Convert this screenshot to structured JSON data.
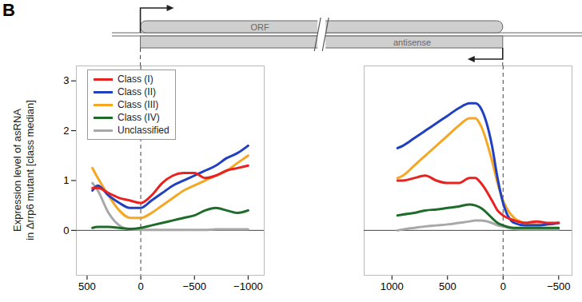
{
  "panel_label": "B",
  "schematic": {
    "orf": "ORF",
    "antisense": "antisense"
  },
  "chart_data": [
    {
      "type": "line",
      "ylabel": [
        "Expression level of asRNA",
        "in Δrrp6 mutant [class median]"
      ],
      "legend": "upper left",
      "x": [
        450,
        400,
        300,
        200,
        100,
        0,
        -100,
        -200,
        -300,
        -400,
        -500,
        -600,
        -700,
        -800,
        -900,
        -1000
      ],
      "xlim": [
        600,
        -1150
      ],
      "xticks": [
        500,
        0,
        -500,
        -1000
      ],
      "ylim": [
        -0.9,
        3.3
      ],
      "yticks": [
        0,
        1,
        2,
        3
      ],
      "reference_lines": [
        {
          "axis": "y",
          "value": 0,
          "line_style": "solid"
        },
        {
          "axis": "x",
          "value": 0,
          "line_style": "dashed"
        }
      ],
      "series": [
        {
          "name": "Class (I)",
          "color": "#e8231f",
          "values": [
            0.85,
            0.85,
            0.75,
            0.65,
            0.6,
            0.55,
            0.7,
            0.95,
            1.1,
            1.15,
            1.15,
            1.05,
            1.1,
            1.2,
            1.25,
            1.3
          ]
        },
        {
          "name": "Class (II)",
          "color": "#2040c0",
          "values": [
            0.8,
            0.9,
            0.7,
            0.55,
            0.45,
            0.45,
            0.6,
            0.75,
            0.9,
            1.0,
            1.1,
            1.2,
            1.3,
            1.45,
            1.55,
            1.7
          ]
        },
        {
          "name": "Class (III)",
          "color": "#f5a623",
          "values": [
            1.25,
            1.05,
            0.7,
            0.4,
            0.25,
            0.25,
            0.35,
            0.5,
            0.65,
            0.8,
            0.9,
            1.0,
            1.1,
            1.2,
            1.35,
            1.5
          ]
        },
        {
          "name": "Class (IV)",
          "color": "#1e6b2a",
          "values": [
            0.05,
            0.07,
            0.07,
            0.05,
            0.03,
            0.05,
            0.1,
            0.15,
            0.2,
            0.25,
            0.3,
            0.4,
            0.45,
            0.4,
            0.35,
            0.4
          ]
        },
        {
          "name": "Unclassified",
          "color": "#a8a8a8",
          "values": [
            0.95,
            0.8,
            0.35,
            0.1,
            0.02,
            0.01,
            0.01,
            0.01,
            0.01,
            0.01,
            0.01,
            0.01,
            0.02,
            0.02,
            0.02,
            0.02
          ]
        }
      ]
    },
    {
      "type": "line",
      "tick_labels": "x",
      "x": [
        950,
        900,
        800,
        700,
        600,
        500,
        400,
        300,
        250,
        200,
        100,
        50,
        0,
        -100,
        -200,
        -300,
        -400,
        -500
      ],
      "xlim": [
        1250,
        -620
      ],
      "xticks": [
        1000,
        500,
        0,
        -500
      ],
      "ylim": [
        -0.9,
        3.3
      ],
      "reference_lines": [
        {
          "axis": "y",
          "value": 0,
          "line_style": "solid"
        },
        {
          "axis": "x",
          "value": 0,
          "line_style": "dashed"
        }
      ],
      "series": [
        {
          "name": "Class (I)",
          "color": "#e8231f",
          "values": [
            1.0,
            1.0,
            1.05,
            1.1,
            1.0,
            0.95,
            0.95,
            1.05,
            1.05,
            0.95,
            0.6,
            0.4,
            0.3,
            0.2,
            0.15,
            0.18,
            0.15,
            0.15
          ]
        },
        {
          "name": "Class (II)",
          "color": "#2040c0",
          "values": [
            1.65,
            1.7,
            1.85,
            2.0,
            2.15,
            2.3,
            2.45,
            2.55,
            2.55,
            2.45,
            1.7,
            1.05,
            0.55,
            0.15,
            0.1,
            0.1,
            0.12,
            0.15
          ]
        },
        {
          "name": "Class (III)",
          "color": "#f5a623",
          "values": [
            1.05,
            1.1,
            1.3,
            1.5,
            1.7,
            1.9,
            2.1,
            2.25,
            2.25,
            2.1,
            1.4,
            0.95,
            0.6,
            0.25,
            0.15,
            0.12,
            0.12,
            0.15
          ]
        },
        {
          "name": "Class (IV)",
          "color": "#1e6b2a",
          "values": [
            0.3,
            0.32,
            0.35,
            0.4,
            0.42,
            0.45,
            0.48,
            0.52,
            0.5,
            0.45,
            0.25,
            0.15,
            0.1,
            0.05,
            0.05,
            0.05,
            0.05,
            0.05
          ]
        },
        {
          "name": "Unclassified",
          "color": "#a8a8a8",
          "values": [
            0,
            0.02,
            0.05,
            0.08,
            0.1,
            0.12,
            0.15,
            0.18,
            0.2,
            0.2,
            0.15,
            0.1,
            0.08,
            0.03,
            0.02,
            0.02,
            0.02,
            0.02
          ]
        }
      ]
    }
  ]
}
